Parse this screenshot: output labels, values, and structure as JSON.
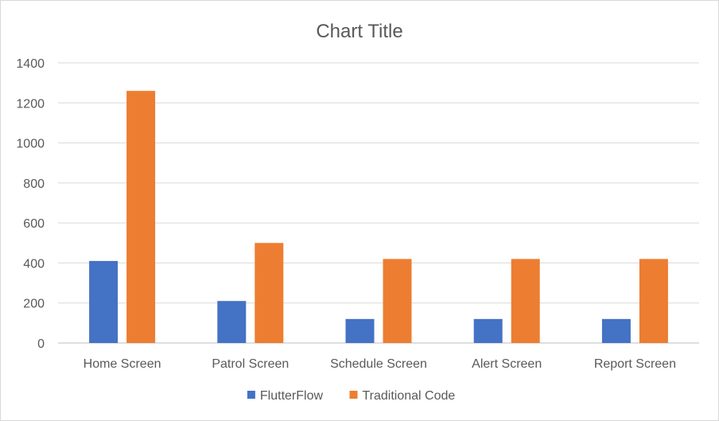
{
  "chart_data": {
    "type": "bar",
    "title": "Chart Title",
    "categories": [
      "Home Screen",
      "Patrol Screen",
      "Schedule Screen",
      "Alert Screen",
      "Report Screen"
    ],
    "series": [
      {
        "name": "FlutterFlow",
        "color": "#4472c4",
        "values": [
          410,
          210,
          120,
          120,
          120
        ]
      },
      {
        "name": "Traditional Code",
        "color": "#ed7d31",
        "values": [
          1260,
          500,
          420,
          420,
          420
        ]
      }
    ],
    "xlabel": "",
    "ylabel": "",
    "ylim": [
      0,
      1400
    ],
    "yticks": [
      "0",
      "200",
      "400",
      "600",
      "800",
      "1000",
      "1200",
      "1400"
    ],
    "grid": true,
    "legend_position": "bottom"
  }
}
